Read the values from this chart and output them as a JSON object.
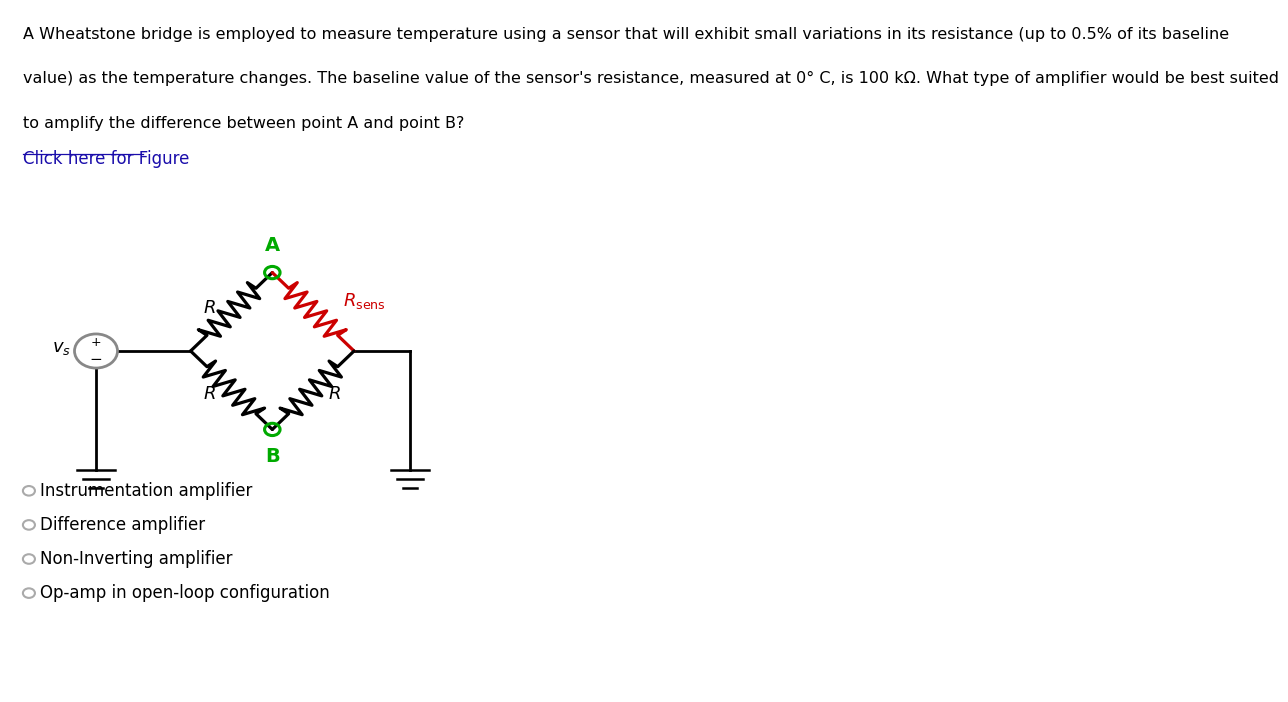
{
  "bg_color": "#ffffff",
  "text_color": "#000000",
  "link_color": "#1a0dab",
  "option_text_color": "#000000",
  "question_lines": [
    "A Wheatstone bridge is employed to measure temperature using a sensor that will exhibit small variations in its resistance (up to 0.5% of its baseline",
    "value) as the temperature changes. The baseline value of the sensor's resistance, measured at 0° C, is 100 kΩ. What type of amplifier would be best suited",
    "to amplify the difference between point A and point B?"
  ],
  "link_text": "Click here for Figure",
  "options": [
    "Instrumentation amplifier",
    "Difference amplifier",
    "Non-Inverting amplifier",
    "Op-amp in open-loop configuration"
  ],
  "R_color": "#000000",
  "Rsens_color": "#cc0000",
  "node_color": "#00aa00",
  "source_color": "#888888",
  "wire_color": "#000000"
}
